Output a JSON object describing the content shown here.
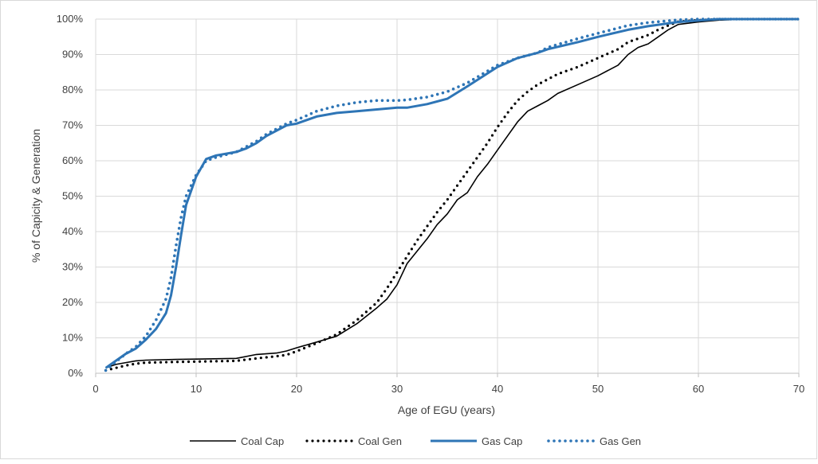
{
  "chart_data": {
    "type": "line",
    "title": "",
    "xlabel": "Age of EGU (years)",
    "ylabel": "% of Capicity & Generation",
    "xlim": [
      0,
      70
    ],
    "ylim": [
      0,
      100
    ],
    "xticks": [
      0,
      10,
      20,
      30,
      40,
      50,
      60,
      70
    ],
    "yticks": [
      0,
      10,
      20,
      30,
      40,
      50,
      60,
      70,
      80,
      90,
      100
    ],
    "xtick_labels": [
      "0",
      "10",
      "20",
      "30",
      "40",
      "50",
      "60",
      "70"
    ],
    "ytick_labels": [
      "0%",
      "10%",
      "20%",
      "30%",
      "40%",
      "50%",
      "60%",
      "70%",
      "80%",
      "90%",
      "100%"
    ],
    "grid": "horizontal",
    "legend_position": "bottom",
    "series": [
      {
        "name": "Coal Cap",
        "color": "#000000",
        "style": "solid",
        "x": [
          1,
          2,
          3,
          4,
          5,
          8,
          10,
          14,
          16,
          18,
          19,
          20,
          22,
          24,
          26,
          28,
          29,
          30,
          31,
          32,
          33,
          34,
          35,
          36,
          37,
          38,
          39,
          40,
          41,
          42,
          43,
          44,
          45,
          46,
          48,
          50,
          52,
          53,
          54,
          55,
          56,
          57,
          58,
          60,
          62,
          65,
          70
        ],
        "y": [
          1.5,
          2.5,
          3,
          3.5,
          3.7,
          3.9,
          4.0,
          4.2,
          5.3,
          5.7,
          6.3,
          7.2,
          8.8,
          10.5,
          14,
          18.5,
          21,
          25,
          31,
          34.5,
          38,
          42,
          45,
          49,
          51,
          55.5,
          59,
          63,
          67,
          71,
          74,
          75.5,
          77,
          79,
          81.5,
          84,
          87,
          90,
          92,
          93,
          95,
          97,
          98.5,
          99.2,
          99.7,
          100,
          100
        ]
      },
      {
        "name": "Coal Gen",
        "color": "#000000",
        "style": "dotted",
        "x": [
          1,
          2,
          3,
          4,
          5,
          8,
          10,
          14,
          16,
          18,
          19,
          20,
          22,
          24,
          26,
          28,
          29,
          30,
          31,
          32,
          33,
          34,
          35,
          36,
          37,
          38,
          39,
          40,
          41,
          42,
          43,
          44,
          45,
          46,
          48,
          50,
          52,
          53,
          54,
          55,
          56,
          57,
          58,
          60,
          62,
          65,
          70
        ],
        "y": [
          0.8,
          1.5,
          2.2,
          2.7,
          3.0,
          3.2,
          3.3,
          3.5,
          4.2,
          4.8,
          5.2,
          6.2,
          8.5,
          11,
          15,
          20,
          24,
          28.5,
          33,
          37.5,
          41.5,
          45.5,
          49,
          53,
          57,
          61,
          65,
          69.5,
          73.5,
          77,
          79.5,
          81.5,
          83,
          84.5,
          86.5,
          89,
          91.5,
          93.5,
          94.5,
          95.5,
          97,
          98.2,
          99.3,
          99.7,
          100,
          100,
          100
        ]
      },
      {
        "name": "Gas Cap",
        "color": "#2E75B6",
        "style": "solid",
        "x": [
          1,
          2,
          3,
          4,
          5,
          6,
          7,
          7.5,
          8,
          8.5,
          9,
          10,
          11,
          12,
          14,
          15,
          16,
          17,
          18,
          19,
          20,
          22,
          24,
          26,
          28,
          30,
          31,
          33,
          35,
          37,
          40,
          42,
          44,
          45,
          48,
          50,
          53,
          55,
          58,
          60,
          62,
          65,
          70
        ],
        "y": [
          1.5,
          3.5,
          5.5,
          7,
          9.5,
          12.5,
          17,
          22,
          30,
          39,
          47.5,
          55.5,
          60.5,
          61.5,
          62.5,
          63.5,
          65,
          67,
          68.5,
          70,
          70.5,
          72.5,
          73.5,
          74,
          74.5,
          75,
          75,
          76,
          77.5,
          81,
          86.5,
          89,
          90.5,
          91.5,
          93.5,
          95,
          97,
          98,
          99.2,
          99.6,
          100,
          100,
          100
        ]
      },
      {
        "name": "Gas Gen",
        "color": "#2E75B6",
        "style": "dotted",
        "x": [
          1,
          2,
          3,
          4,
          5,
          6,
          7,
          7.5,
          8,
          8.5,
          9,
          10,
          11,
          12,
          14,
          15,
          16,
          17,
          18,
          19,
          20,
          22,
          24,
          26,
          28,
          30,
          31,
          33,
          35,
          37,
          40,
          42,
          44,
          45,
          48,
          50,
          53,
          55,
          58,
          60,
          62,
          65,
          70
        ],
        "y": [
          0.8,
          3.2,
          5.5,
          7.5,
          10.5,
          15,
          21,
          27,
          36,
          44,
          50,
          56,
          60,
          61,
          62.5,
          64,
          65.5,
          67.5,
          69,
          70.5,
          71.5,
          74,
          75.5,
          76.5,
          77,
          77,
          77.2,
          78,
          79.5,
          82,
          87,
          89,
          90.5,
          92,
          94.5,
          96,
          98.2,
          99,
          99.8,
          100,
          100,
          100,
          100
        ]
      }
    ]
  }
}
